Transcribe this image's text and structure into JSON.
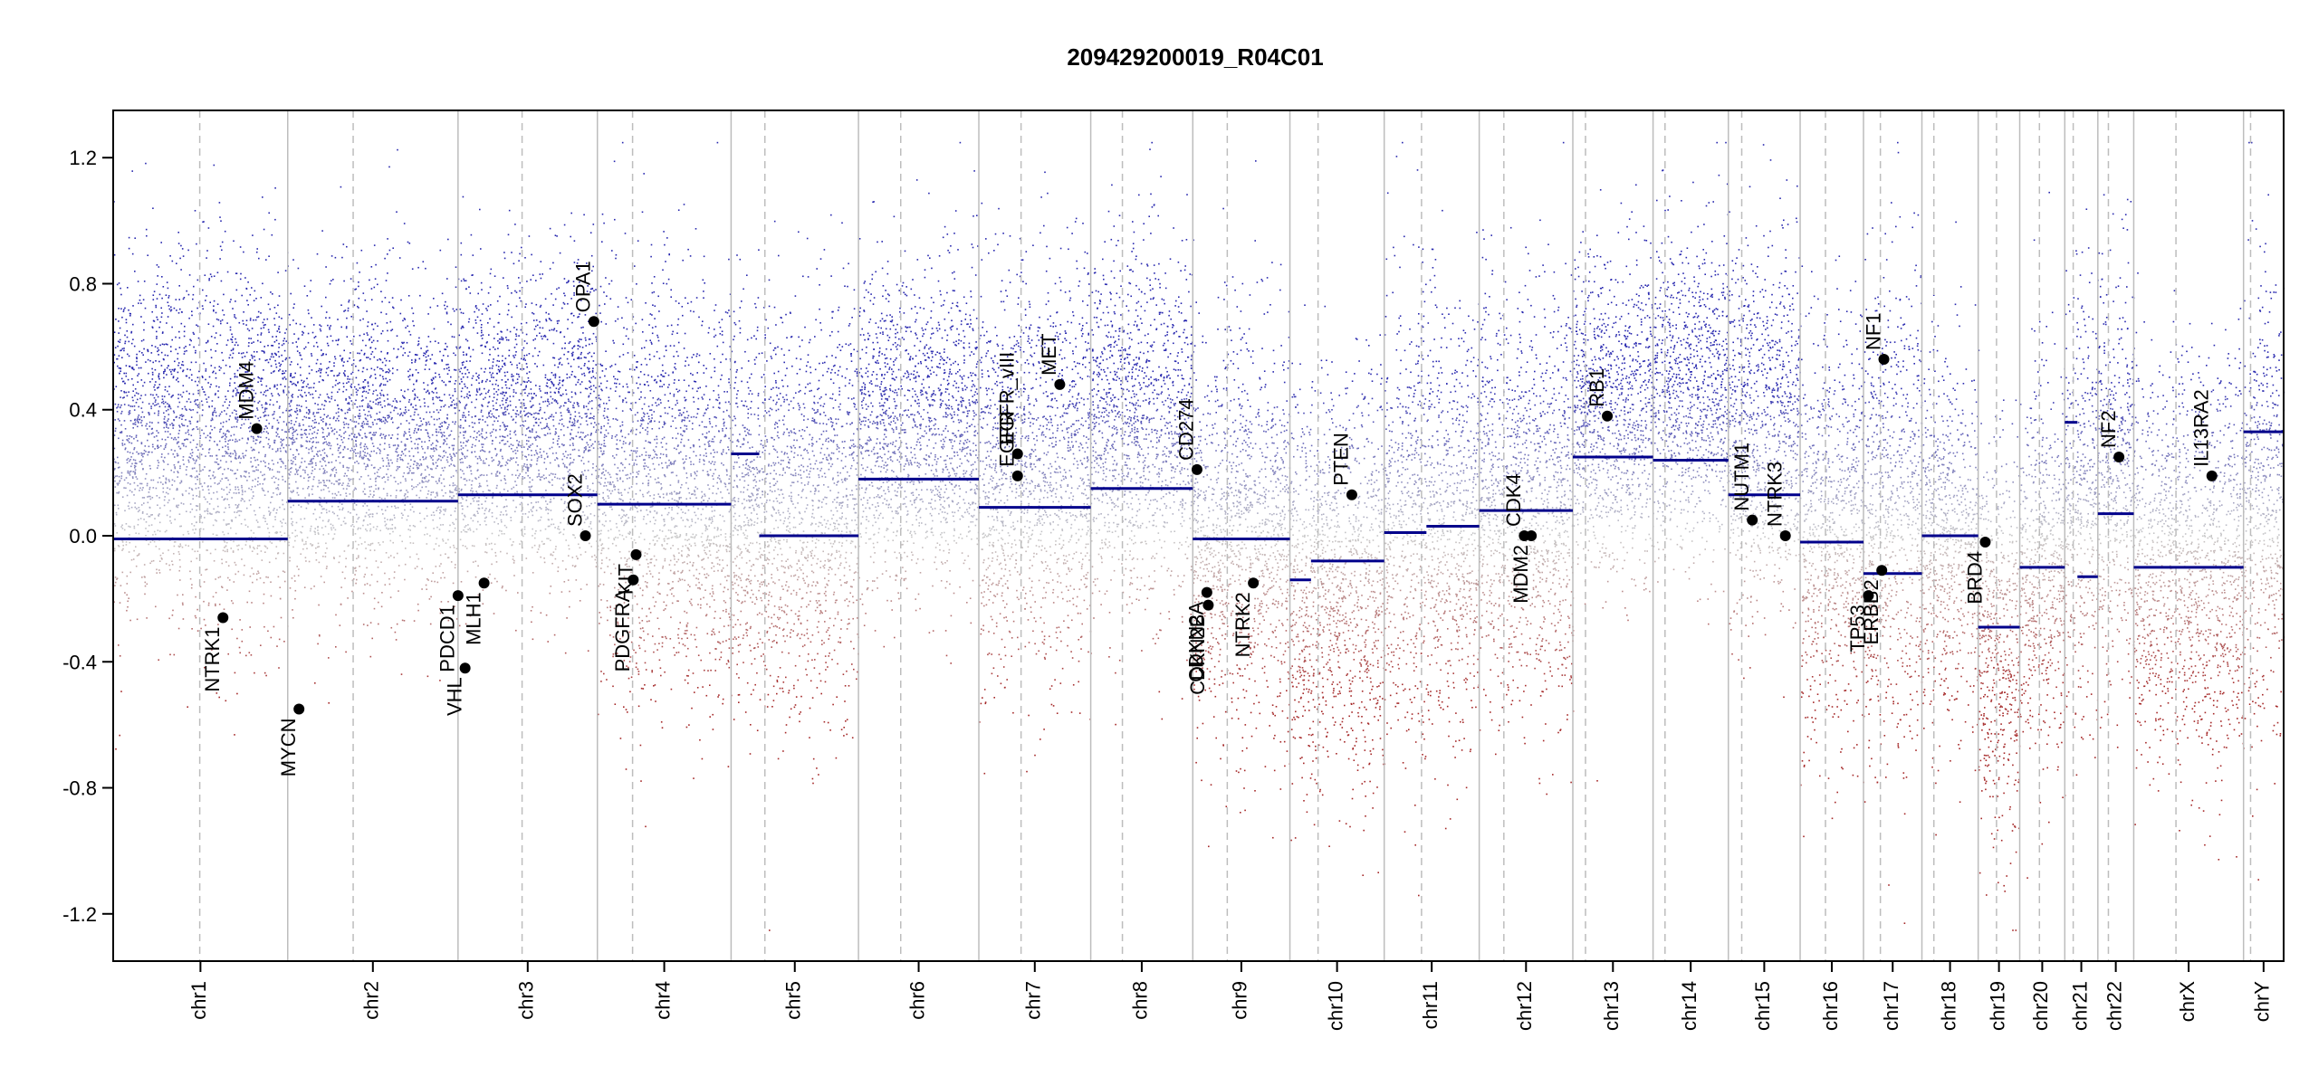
{
  "chart_data": {
    "type": "scatter",
    "title": "209429200019_R04C01",
    "xlabel": "",
    "ylabel": "",
    "ylim": [
      -1.35,
      1.35
    ],
    "yticks": [
      -1.2,
      -0.8,
      -0.4,
      0.0,
      0.4,
      0.8,
      1.2
    ],
    "ytick_labels": [
      "-1.2",
      "-0.8",
      "-0.4",
      "0.0",
      "0.4",
      "0.8",
      "1.2"
    ],
    "grid": false,
    "colors": {
      "gain": "#2b2bb0",
      "loss": "#a52a2a",
      "neutral": "#c8c8c8",
      "segment": "#00008b",
      "boundary": "#bdbdbd",
      "centromere": "#bdbdbd",
      "gene_point": "#000000"
    },
    "chromosomes": [
      {
        "name": "chr1",
        "start": 0,
        "end": 248,
        "centromere": 123,
        "segments": [
          {
            "start": 0,
            "end": 248,
            "value": -0.01
          }
        ],
        "band": {
          "center": 0.3,
          "spread": 0.4
        }
      },
      {
        "name": "chr2",
        "start": 248,
        "end": 490,
        "centromere": 93,
        "segments": [
          {
            "start": 0,
            "end": 242,
            "value": 0.11
          }
        ],
        "band": {
          "center": 0.3,
          "spread": 0.35
        }
      },
      {
        "name": "chr3",
        "start": 490,
        "end": 688,
        "centromere": 91,
        "segments": [
          {
            "start": 0,
            "end": 198,
            "value": 0.13
          }
        ],
        "band": {
          "center": 0.35,
          "spread": 0.35
        }
      },
      {
        "name": "chr4",
        "start": 688,
        "end": 878,
        "centromere": 50,
        "segments": [
          {
            "start": 0,
            "end": 190,
            "value": 0.1
          }
        ],
        "band": {
          "center": 0.15,
          "spread": 0.45
        }
      },
      {
        "name": "chr5",
        "start": 878,
        "end": 1059,
        "centromere": 48,
        "segments": [
          {
            "start": 0,
            "end": 40,
            "value": 0.26
          },
          {
            "start": 40,
            "end": 181,
            "value": 0.0
          }
        ],
        "band": {
          "center": 0.1,
          "spread": 0.45
        }
      },
      {
        "name": "chr6",
        "start": 1059,
        "end": 1230,
        "centromere": 60,
        "segments": [
          {
            "start": 0,
            "end": 171,
            "value": 0.18
          }
        ],
        "band": {
          "center": 0.35,
          "spread": 0.35
        }
      },
      {
        "name": "chr7",
        "start": 1230,
        "end": 1389,
        "centromere": 60,
        "segments": [
          {
            "start": 0,
            "end": 159,
            "value": 0.09
          }
        ],
        "band": {
          "center": 0.2,
          "spread": 0.45
        }
      },
      {
        "name": "chr8",
        "start": 1389,
        "end": 1534,
        "centromere": 45,
        "segments": [
          {
            "start": 0,
            "end": 145,
            "value": 0.15
          }
        ],
        "band": {
          "center": 0.35,
          "spread": 0.4
        }
      },
      {
        "name": "chr9",
        "start": 1534,
        "end": 1672,
        "centromere": 49,
        "segments": [
          {
            "start": 0,
            "end": 138,
            "value": -0.01
          }
        ],
        "band": {
          "center": 0.0,
          "spread": 0.45
        }
      },
      {
        "name": "chr10",
        "start": 1672,
        "end": 1806,
        "centromere": 40,
        "segments": [
          {
            "start": 0,
            "end": 30,
            "value": -0.14
          },
          {
            "start": 30,
            "end": 134,
            "value": -0.08
          }
        ],
        "band": {
          "center": -0.15,
          "spread": 0.45
        }
      },
      {
        "name": "chr11",
        "start": 1806,
        "end": 1941,
        "centromere": 53,
        "segments": [
          {
            "start": 0,
            "end": 60,
            "value": 0.01
          },
          {
            "start": 60,
            "end": 135,
            "value": 0.03
          }
        ],
        "band": {
          "center": 0.05,
          "spread": 0.5
        }
      },
      {
        "name": "chr12",
        "start": 1941,
        "end": 2074,
        "centromere": 35,
        "segments": [
          {
            "start": 0,
            "end": 133,
            "value": 0.08
          }
        ],
        "band": {
          "center": 0.1,
          "spread": 0.45
        }
      },
      {
        "name": "chr13",
        "start": 2074,
        "end": 2188,
        "centromere": 18,
        "segments": [
          {
            "start": 0,
            "end": 114,
            "value": 0.25
          }
        ],
        "band": {
          "center": 0.4,
          "spread": 0.35
        }
      },
      {
        "name": "chr14",
        "start": 2188,
        "end": 2295,
        "centromere": 17,
        "segments": [
          {
            "start": 0,
            "end": 107,
            "value": 0.24
          }
        ],
        "band": {
          "center": 0.45,
          "spread": 0.35
        }
      },
      {
        "name": "chr15",
        "start": 2295,
        "end": 2397,
        "centromere": 19,
        "segments": [
          {
            "start": 0,
            "end": 102,
            "value": 0.13
          }
        ],
        "band": {
          "center": 0.35,
          "spread": 0.4
        }
      },
      {
        "name": "chr16",
        "start": 2397,
        "end": 2487,
        "centromere": 36,
        "segments": [
          {
            "start": 0,
            "end": 90,
            "value": -0.02
          }
        ],
        "band": {
          "center": 0.0,
          "spread": 0.45
        }
      },
      {
        "name": "chr17",
        "start": 2487,
        "end": 2570,
        "centromere": 24,
        "segments": [
          {
            "start": 0,
            "end": 83,
            "value": -0.12
          }
        ],
        "band": {
          "center": 0.05,
          "spread": 0.55
        }
      },
      {
        "name": "chr18",
        "start": 2570,
        "end": 2650,
        "centromere": 17,
        "segments": [
          {
            "start": 0,
            "end": 80,
            "value": 0.0
          }
        ],
        "band": {
          "center": 0.0,
          "spread": 0.4
        }
      },
      {
        "name": "chr19",
        "start": 2650,
        "end": 2709,
        "centromere": 26,
        "segments": [
          {
            "start": 0,
            "end": 59,
            "value": -0.29
          }
        ],
        "band": {
          "center": -0.35,
          "spread": 0.45
        }
      },
      {
        "name": "chr20",
        "start": 2709,
        "end": 2773,
        "centromere": 28,
        "segments": [
          {
            "start": 0,
            "end": 64,
            "value": -0.1
          }
        ],
        "band": {
          "center": -0.1,
          "spread": 0.45
        }
      },
      {
        "name": "chr21",
        "start": 2773,
        "end": 2820,
        "centromere": 12,
        "segments": [
          {
            "start": 0,
            "end": 18,
            "value": 0.36
          },
          {
            "start": 18,
            "end": 47,
            "value": -0.13
          }
        ],
        "band": {
          "center": 0.1,
          "spread": 0.45
        }
      },
      {
        "name": "chr22",
        "start": 2820,
        "end": 2871,
        "centromere": 15,
        "segments": [
          {
            "start": 0,
            "end": 51,
            "value": 0.07
          }
        ],
        "band": {
          "center": 0.2,
          "spread": 0.45
        }
      },
      {
        "name": "chrX",
        "start": 2871,
        "end": 3027,
        "centromere": 60,
        "segments": [
          {
            "start": 0,
            "end": 156,
            "value": -0.1
          }
        ],
        "band": {
          "center": -0.1,
          "spread": 0.45
        }
      },
      {
        "name": "chrY",
        "start": 3027,
        "end": 3084,
        "centromere": 10,
        "segments": [
          {
            "start": 0,
            "end": 57,
            "value": 0.33
          }
        ],
        "band": {
          "center": 0.1,
          "spread": 0.5
        }
      }
    ],
    "genes": [
      {
        "name": "NTRK1",
        "x": 156,
        "y": -0.26,
        "label_side": "below"
      },
      {
        "name": "MDM4",
        "x": 204,
        "y": 0.34,
        "label_side": "above"
      },
      {
        "name": "MYCN",
        "x": 264,
        "y": -0.55,
        "label_side": "below"
      },
      {
        "name": "VHL",
        "x": 500,
        "y": -0.42,
        "label_side": "below"
      },
      {
        "name": "PDCD1",
        "x": 490,
        "y": -0.19,
        "label_side": "below"
      },
      {
        "name": "MLH1",
        "x": 527,
        "y": -0.15,
        "label_side": "below"
      },
      {
        "name": "SOX2",
        "x": 671,
        "y": 0.0,
        "label_side": "above"
      },
      {
        "name": "OPA1",
        "x": 683,
        "y": 0.68,
        "label_side": "above"
      },
      {
        "name": "PDGFRA",
        "x": 739,
        "y": -0.14,
        "label_side": "below"
      },
      {
        "name": "KIT",
        "x": 743,
        "y": -0.06,
        "label_side": "below"
      },
      {
        "name": "EGFR",
        "x": 1285,
        "y": 0.19,
        "label_side": "above"
      },
      {
        "name": "EGFR_vIII",
        "x": 1285,
        "y": 0.26,
        "label_side": "above"
      },
      {
        "name": "MET",
        "x": 1345,
        "y": 0.48,
        "label_side": "above"
      },
      {
        "name": "CD274",
        "x": 1540,
        "y": 0.21,
        "label_side": "above"
      },
      {
        "name": "CDKN2A",
        "x": 1554,
        "y": -0.18,
        "label_side": "below"
      },
      {
        "name": "CDKN2B",
        "x": 1556,
        "y": -0.22,
        "label_side": "below"
      },
      {
        "name": "NTRK2",
        "x": 1620,
        "y": -0.15,
        "label_side": "below"
      },
      {
        "name": "PTEN",
        "x": 1760,
        "y": 0.13,
        "label_side": "above"
      },
      {
        "name": "CDK4",
        "x": 2005,
        "y": 0.0,
        "label_side": "above"
      },
      {
        "name": "MDM2",
        "x": 2015,
        "y": 0.0,
        "label_side": "below"
      },
      {
        "name": "RB1",
        "x": 2123,
        "y": 0.38,
        "label_side": "above"
      },
      {
        "name": "NUTM1",
        "x": 2329,
        "y": 0.05,
        "label_side": "above"
      },
      {
        "name": "NTRK3",
        "x": 2376,
        "y": 0.0,
        "label_side": "above"
      },
      {
        "name": "TP53",
        "x": 2494,
        "y": -0.19,
        "label_side": "below"
      },
      {
        "name": "ERBB2",
        "x": 2513,
        "y": -0.11,
        "label_side": "below"
      },
      {
        "name": "NF1",
        "x": 2516,
        "y": 0.56,
        "label_side": "above"
      },
      {
        "name": "BRD4",
        "x": 2660,
        "y": -0.02,
        "label_side": "below"
      },
      {
        "name": "NF2",
        "x": 2850,
        "y": 0.25,
        "label_side": "above"
      },
      {
        "name": "IL13RA2",
        "x": 2982,
        "y": 0.19,
        "label_side": "above"
      }
    ]
  }
}
